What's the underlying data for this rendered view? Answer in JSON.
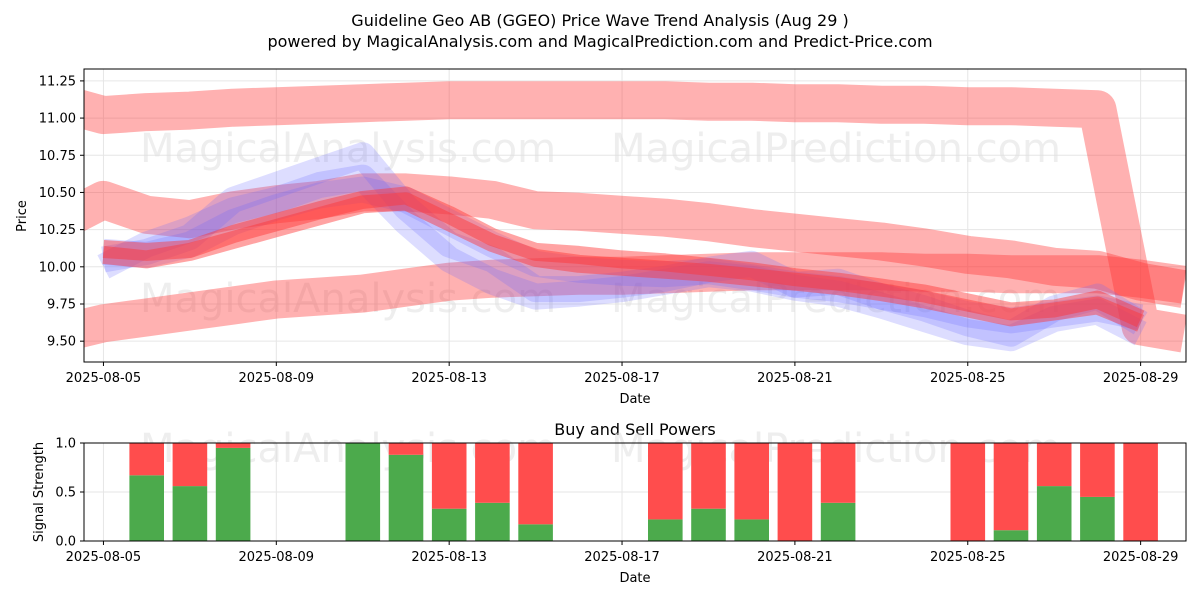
{
  "title_line1": "Guideline Geo AB (GGEO) Price Wave Trend Analysis (Aug 29 )",
  "title_line2": "powered by MagicalAnalysis.com and MagicalPrediction.com and Predict-Price.com",
  "watermarks": [
    "MagicalAnalysis.com",
    "MagicalPrediction.com"
  ],
  "colors": {
    "buy": "#4caa4c",
    "sell": "#ff4d4d",
    "blue_band": "#6666ff",
    "red_band": "#ff3333"
  },
  "chart_data": [
    {
      "type": "area",
      "xlabel": "Date",
      "ylabel": "Price",
      "ylim": [
        9.36,
        11.33
      ],
      "xlim": [
        "2025-08-04",
        "2025-08-30"
      ],
      "grid": true,
      "x_ticks": [
        "2025-08-05",
        "2025-08-09",
        "2025-08-13",
        "2025-08-17",
        "2025-08-21",
        "2025-08-25",
        "2025-08-29"
      ],
      "y_ticks": [
        9.5,
        9.75,
        10.0,
        10.25,
        10.5,
        10.75,
        11.0,
        11.25
      ],
      "y_tick_labels": [
        "9.50",
        "9.75",
        "10.00",
        "10.25",
        "10.50",
        "10.75",
        "11.00",
        "11.25"
      ],
      "blue_bands": [
        {
          "x": [
            "2025-08-05",
            "2025-08-06",
            "2025-08-07",
            "2025-08-08",
            "2025-08-09",
            "2025-08-10",
            "2025-08-11",
            "2025-08-12",
            "2025-08-13",
            "2025-08-14",
            "2025-08-15",
            "2025-08-16",
            "2025-08-17",
            "2025-08-18",
            "2025-08-19",
            "2025-08-20",
            "2025-08-21",
            "2025-08-22",
            "2025-08-23",
            "2025-08-24",
            "2025-08-25",
            "2025-08-26",
            "2025-08-27",
            "2025-08-28",
            "2025-08-29"
          ],
          "y": [
            10.05,
            10.1,
            10.2,
            10.45,
            10.55,
            10.65,
            10.75,
            10.4,
            10.15,
            10.05,
            9.85,
            9.85,
            9.88,
            9.92,
            9.98,
            10.02,
            9.88,
            9.9,
            9.8,
            9.72,
            9.62,
            9.55,
            9.72,
            9.8,
            9.62
          ]
        },
        {
          "x": [
            "2025-08-05",
            "2025-08-06",
            "2025-08-07",
            "2025-08-08",
            "2025-08-09",
            "2025-08-10",
            "2025-08-11",
            "2025-08-12",
            "2025-08-13",
            "2025-08-14",
            "2025-08-15",
            "2025-08-16",
            "2025-08-17",
            "2025-08-18",
            "2025-08-19",
            "2025-08-20",
            "2025-08-21",
            "2025-08-22",
            "2025-08-23",
            "2025-08-24",
            "2025-08-25",
            "2025-08-26",
            "2025-08-27",
            "2025-08-28",
            "2025-08-29"
          ],
          "y": [
            10.1,
            10.08,
            10.15,
            10.3,
            10.4,
            10.48,
            10.52,
            10.45,
            10.3,
            10.15,
            10.02,
            9.98,
            9.96,
            9.95,
            9.97,
            9.93,
            9.88,
            9.85,
            9.8,
            9.75,
            9.68,
            9.64,
            9.68,
            9.72,
            9.66
          ]
        },
        {
          "x": [
            "2025-08-05",
            "2025-08-06",
            "2025-08-07",
            "2025-08-08",
            "2025-08-09",
            "2025-08-10",
            "2025-08-11",
            "2025-08-12",
            "2025-08-13",
            "2025-08-14",
            "2025-08-15",
            "2025-08-16",
            "2025-08-17",
            "2025-08-18",
            "2025-08-19",
            "2025-08-20",
            "2025-08-21",
            "2025-08-22",
            "2025-08-23",
            "2025-08-24",
            "2025-08-25",
            "2025-08-26",
            "2025-08-27",
            "2025-08-28",
            "2025-08-29"
          ],
          "y": [
            10.0,
            10.15,
            10.25,
            10.38,
            10.45,
            10.55,
            10.6,
            10.3,
            10.05,
            9.9,
            9.8,
            9.82,
            9.85,
            9.9,
            9.95,
            9.92,
            9.86,
            9.82,
            9.74,
            9.65,
            9.56,
            9.52,
            9.65,
            9.7,
            9.55
          ]
        }
      ],
      "red_bands": [
        {
          "x": [
            "2025-08-04",
            "2025-08-05",
            "2025-08-06",
            "2025-08-07",
            "2025-08-08",
            "2025-08-09",
            "2025-08-10",
            "2025-08-11",
            "2025-08-12",
            "2025-08-13",
            "2025-08-14",
            "2025-08-15",
            "2025-08-16",
            "2025-08-17",
            "2025-08-18",
            "2025-08-19",
            "2025-08-20",
            "2025-08-21",
            "2025-08-22",
            "2025-08-23",
            "2025-08-24",
            "2025-08-25",
            "2025-08-26",
            "2025-08-27",
            "2025-08-28",
            "2025-08-29",
            "2025-08-30"
          ],
          "y": [
            11.1,
            11.02,
            11.04,
            11.05,
            11.07,
            11.08,
            11.09,
            11.1,
            11.11,
            11.12,
            11.12,
            11.12,
            11.12,
            11.12,
            11.12,
            11.11,
            11.11,
            11.1,
            11.1,
            11.09,
            11.09,
            11.08,
            11.08,
            11.07,
            11.06,
            9.6,
            9.55
          ]
        },
        {
          "x": [
            "2025-08-04",
            "2025-08-05",
            "2025-08-06",
            "2025-08-07",
            "2025-08-08",
            "2025-08-09",
            "2025-08-10",
            "2025-08-11",
            "2025-08-12",
            "2025-08-13",
            "2025-08-14",
            "2025-08-15",
            "2025-08-16",
            "2025-08-17",
            "2025-08-18",
            "2025-08-19",
            "2025-08-20",
            "2025-08-21",
            "2025-08-22",
            "2025-08-23",
            "2025-08-24",
            "2025-08-25",
            "2025-08-26",
            "2025-08-27",
            "2025-08-28",
            "2025-08-29",
            "2025-08-30"
          ],
          "y": [
            10.3,
            10.45,
            10.35,
            10.32,
            10.38,
            10.42,
            10.45,
            10.5,
            10.5,
            10.48,
            10.45,
            10.38,
            10.37,
            10.35,
            10.33,
            10.3,
            10.26,
            10.23,
            10.2,
            10.17,
            10.13,
            10.08,
            10.05,
            10.0,
            9.98,
            9.9,
            9.85
          ]
        },
        {
          "x": [
            "2025-08-04",
            "2025-08-05",
            "2025-08-06",
            "2025-08-07",
            "2025-08-08",
            "2025-08-09",
            "2025-08-10",
            "2025-08-11",
            "2025-08-12",
            "2025-08-13",
            "2025-08-14",
            "2025-08-15",
            "2025-08-16",
            "2025-08-17",
            "2025-08-18",
            "2025-08-19",
            "2025-08-20",
            "2025-08-21",
            "2025-08-22",
            "2025-08-23",
            "2025-08-24",
            "2025-08-25",
            "2025-08-26",
            "2025-08-27",
            "2025-08-28",
            "2025-08-29",
            "2025-08-30"
          ],
          "y": [
            9.55,
            9.62,
            9.66,
            9.7,
            9.74,
            9.78,
            9.8,
            9.82,
            9.86,
            9.9,
            9.92,
            9.93,
            9.94,
            9.94,
            9.95,
            9.96,
            9.97,
            9.97,
            9.97,
            9.97,
            9.96,
            9.96,
            9.95,
            9.95,
            9.95,
            9.92,
            9.88
          ]
        },
        {
          "x": [
            "2025-08-05",
            "2025-08-06",
            "2025-08-07",
            "2025-08-08",
            "2025-08-09",
            "2025-08-10",
            "2025-08-11",
            "2025-08-12",
            "2025-08-13",
            "2025-08-14",
            "2025-08-15",
            "2025-08-16",
            "2025-08-17",
            "2025-08-18",
            "2025-08-19",
            "2025-08-20",
            "2025-08-21",
            "2025-08-22",
            "2025-08-23",
            "2025-08-24",
            "2025-08-25",
            "2025-08-26",
            "2025-08-27",
            "2025-08-28",
            "2025-08-29"
          ],
          "y": [
            10.12,
            10.1,
            10.12,
            10.22,
            10.3,
            10.38,
            10.45,
            10.48,
            10.35,
            10.2,
            10.1,
            10.08,
            10.05,
            10.03,
            10.0,
            9.97,
            9.93,
            9.9,
            9.86,
            9.82,
            9.76,
            9.7,
            9.72,
            9.78,
            9.65
          ]
        },
        {
          "x": [
            "2025-08-05",
            "2025-08-06",
            "2025-08-07",
            "2025-08-08",
            "2025-08-09",
            "2025-08-10",
            "2025-08-11",
            "2025-08-12",
            "2025-08-13",
            "2025-08-14",
            "2025-08-15",
            "2025-08-16",
            "2025-08-17",
            "2025-08-18",
            "2025-08-19",
            "2025-08-20",
            "2025-08-21",
            "2025-08-22",
            "2025-08-23",
            "2025-08-24",
            "2025-08-25",
            "2025-08-26",
            "2025-08-27",
            "2025-08-28",
            "2025-08-29"
          ],
          "y": [
            10.08,
            10.05,
            10.1,
            10.18,
            10.26,
            10.34,
            10.42,
            10.44,
            10.3,
            10.16,
            10.06,
            10.02,
            10.0,
            9.98,
            9.96,
            9.93,
            9.9,
            9.87,
            9.83,
            9.78,
            9.72,
            9.66,
            9.7,
            9.74,
            9.62
          ]
        }
      ]
    },
    {
      "type": "bar",
      "title": "Buy and Sell Powers",
      "xlabel": "Date",
      "ylabel": "Signal Strength",
      "ylim": [
        0,
        1
      ],
      "xlim": [
        "2025-08-04",
        "2025-08-30"
      ],
      "grid": true,
      "x_ticks": [
        "2025-08-05",
        "2025-08-09",
        "2025-08-13",
        "2025-08-17",
        "2025-08-21",
        "2025-08-25",
        "2025-08-29"
      ],
      "y_ticks": [
        0,
        0.5,
        1
      ],
      "y_tick_labels": [
        "0.0",
        "0.5",
        "1.0"
      ],
      "categories": [
        "2025-08-06",
        "2025-08-07",
        "2025-08-08",
        "2025-08-11",
        "2025-08-12",
        "2025-08-13",
        "2025-08-14",
        "2025-08-15",
        "2025-08-18",
        "2025-08-19",
        "2025-08-20",
        "2025-08-21",
        "2025-08-22",
        "2025-08-25",
        "2025-08-26",
        "2025-08-27",
        "2025-08-28",
        "2025-08-29"
      ],
      "series": [
        {
          "name": "Buy",
          "values": [
            0.67,
            0.56,
            0.95,
            1.0,
            0.88,
            0.33,
            0.39,
            0.17,
            0.22,
            0.33,
            0.22,
            0.0,
            0.39,
            0.0,
            0.11,
            0.56,
            0.45,
            0.0
          ]
        },
        {
          "name": "Sell",
          "values": [
            0.33,
            0.44,
            0.05,
            0.0,
            0.12,
            0.67,
            0.61,
            0.83,
            0.78,
            0.67,
            0.78,
            1.0,
            0.61,
            1.0,
            0.89,
            0.44,
            0.55,
            1.0
          ]
        }
      ]
    }
  ]
}
